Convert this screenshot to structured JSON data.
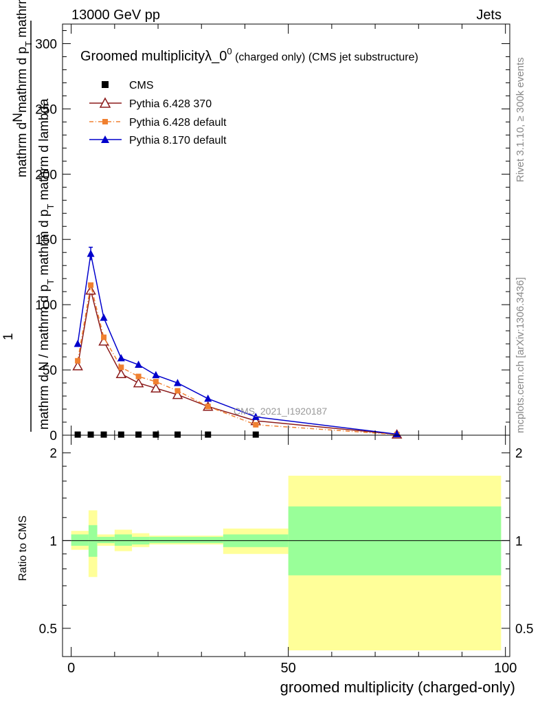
{
  "header": {
    "left": "13000 GeV pp",
    "right": "Jets"
  },
  "side_labels": {
    "rivet": "Rivet 3.1.10, ≥ 300k events",
    "mcplots": "mcplots.cern.ch [arXiv:1306.3436]"
  },
  "watermark": "CMS_2021_I1920187",
  "colors": {
    "cms": "#000000",
    "py6_370": "#8b1a1a",
    "py6_def": "#f08030",
    "py8": "#0000cc",
    "band_inner": "#99ff99",
    "band_outer": "#ffff99"
  },
  "chart_data": [
    {
      "type": "line",
      "title": "Groomed multiplicityλ_0",
      "title_sup": "0",
      "title_tail": " (charged only) (CMS jet substructure)",
      "ylabel_top": "mathrm d",
      "ylabel_top2": "N",
      "ylabel_top3": "mathrm d p",
      "ylabel_top4": "T",
      "ylabel_top5": " mathrm d lambda",
      "ylabel_frac_num": "1",
      "ylabel_bottom": "mathrm d N / mathrm d p",
      "ylabel_bottom2": "T",
      "ylabel_bottom3": " mathrm d p",
      "ylabel_bottom4": "T",
      "ylabel_bottom5": " mathrm d lambda",
      "xlim": [
        -2,
        101
      ],
      "ylim": [
        0,
        315
      ],
      "yticks": [
        0,
        50,
        100,
        150,
        200,
        250,
        300
      ],
      "yticklabels": [
        "0",
        "50",
        "100",
        "150",
        "200",
        "250",
        "300"
      ],
      "legend": {
        "position": "top-left"
      },
      "series": [
        {
          "name": "CMS",
          "style": "square",
          "x": [
            1.5,
            4.5,
            7.5,
            11.5,
            15.5,
            19.5,
            24.5,
            31.5,
            42.5
          ],
          "y": [
            0.2,
            0.2,
            0.2,
            0.2,
            0.2,
            0.2,
            0.2,
            0.2,
            0.2
          ]
        },
        {
          "name": "Pythia 6.428 370",
          "style": "open-triangle",
          "x": [
            1.5,
            4.5,
            7.5,
            11.5,
            15.5,
            19.5,
            24.5,
            31.5,
            42.5,
            75
          ],
          "y": [
            53,
            111,
            72,
            47,
            40,
            36,
            31,
            22,
            11,
            0.7
          ]
        },
        {
          "name": "Pythia 6.428 default",
          "style": "square-dashdot",
          "x": [
            1.5,
            4.5,
            7.5,
            11.5,
            15.5,
            19.5,
            24.5,
            31.5,
            42.5,
            75
          ],
          "y": [
            57,
            115,
            75,
            52,
            45,
            41,
            34,
            22,
            8,
            0.5
          ]
        },
        {
          "name": "Pythia 8.170 default",
          "style": "filled-triangle",
          "x": [
            1.5,
            4.5,
            7.5,
            11.5,
            15.5,
            19.5,
            24.5,
            31.5,
            42.5,
            75
          ],
          "y": [
            70,
            139,
            90,
            59,
            54,
            46,
            40,
            28,
            14,
            0.8
          ]
        }
      ]
    },
    {
      "type": "area",
      "ylabel": "Ratio to CMS",
      "xlabel": "groomed multiplicity (charged-only)",
      "xlim": [
        -2,
        101
      ],
      "ylim": [
        0.4,
        2.3
      ],
      "xticks": [
        0,
        50,
        100
      ],
      "xticklabels": [
        "0",
        "50",
        "100"
      ],
      "yticks": [
        0.5,
        1,
        2
      ],
      "yticklabels": [
        "0.5",
        "1",
        "2"
      ],
      "reference_line": 1,
      "bands": [
        {
          "lo": 0,
          "hi": 4,
          "inner": [
            0.96,
            1.05
          ],
          "outer": [
            0.93,
            1.08
          ]
        },
        {
          "lo": 4,
          "hi": 6,
          "inner": [
            0.88,
            1.13
          ],
          "outer": [
            0.75,
            1.27
          ]
        },
        {
          "lo": 6,
          "hi": 10,
          "inner": [
            0.98,
            1.03
          ],
          "outer": [
            0.96,
            1.05
          ]
        },
        {
          "lo": 10,
          "hi": 14,
          "inner": [
            0.96,
            1.05
          ],
          "outer": [
            0.92,
            1.09
          ]
        },
        {
          "lo": 14,
          "hi": 18,
          "inner": [
            0.97,
            1.03
          ],
          "outer": [
            0.95,
            1.06
          ]
        },
        {
          "lo": 18,
          "hi": 35,
          "inner": [
            0.98,
            1.03
          ],
          "outer": [
            0.97,
            1.04
          ]
        },
        {
          "lo": 35,
          "hi": 50,
          "inner": [
            0.95,
            1.05
          ],
          "outer": [
            0.9,
            1.1
          ]
        },
        {
          "lo": 50,
          "hi": 99,
          "inner": [
            0.76,
            1.31
          ],
          "outer": [
            0.42,
            1.67
          ]
        }
      ]
    }
  ]
}
